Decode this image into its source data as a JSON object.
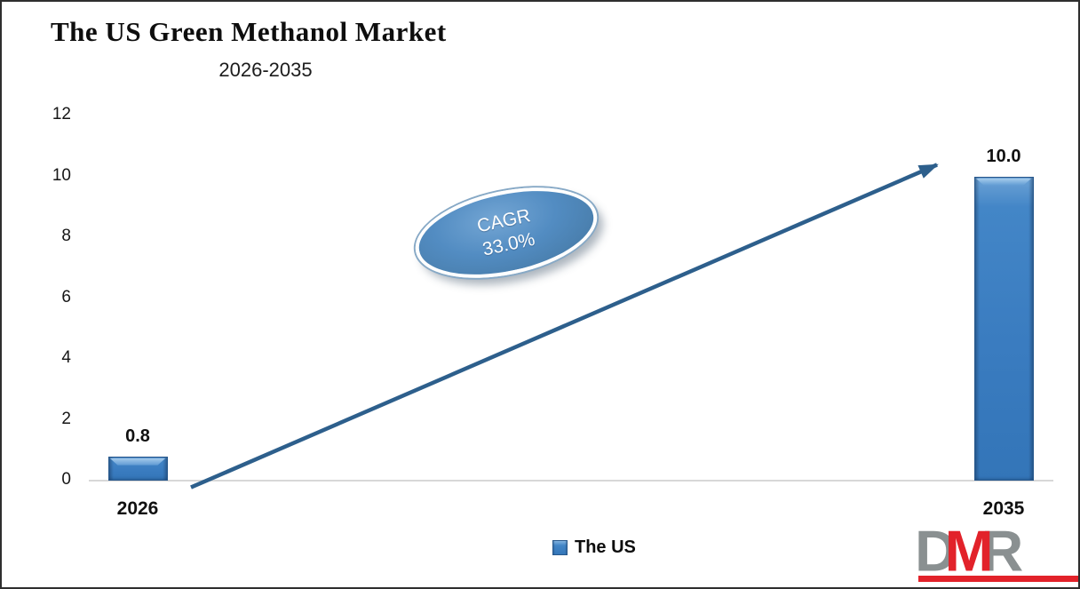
{
  "header": {
    "title": "The US Green Methanol Market",
    "subtitle": "2026-2035"
  },
  "chart_data": {
    "type": "bar",
    "title": "The US Green Methanol Market",
    "subtitle": "2026-2035",
    "categories": [
      "2026",
      "2035"
    ],
    "series": [
      {
        "name": "The US",
        "values": [
          0.8,
          10.0
        ]
      }
    ],
    "value_labels": [
      "0.8",
      "10.0"
    ],
    "xlabel": "",
    "ylabel": "",
    "ylim": [
      0,
      12
    ],
    "yticks": [
      0,
      2,
      4,
      6,
      8,
      10,
      12
    ],
    "grid": false,
    "legend_position": "bottom-center",
    "annotation": {
      "line1": "CAGR",
      "line2": "33.0%"
    },
    "trend_arrow": true
  },
  "legend": {
    "items": [
      {
        "label": "The US",
        "color": "#3a7cc0"
      }
    ]
  },
  "annotation": {
    "line1": "CAGR",
    "line2": "33.0%"
  },
  "logo": {
    "letter_d": "D",
    "letter_m": "M",
    "letter_r": "R",
    "gray": "#8a9091",
    "red": "#e2222a"
  },
  "colors": {
    "bar_fill": "#3a7cc0",
    "bar_edge": "#28588c",
    "arrow": "#2d5f8c",
    "axis_line": "#d8d8d8",
    "ellipse_fill": "#528cc2",
    "ellipse_ring": "#ffffff",
    "text": "#101010"
  }
}
